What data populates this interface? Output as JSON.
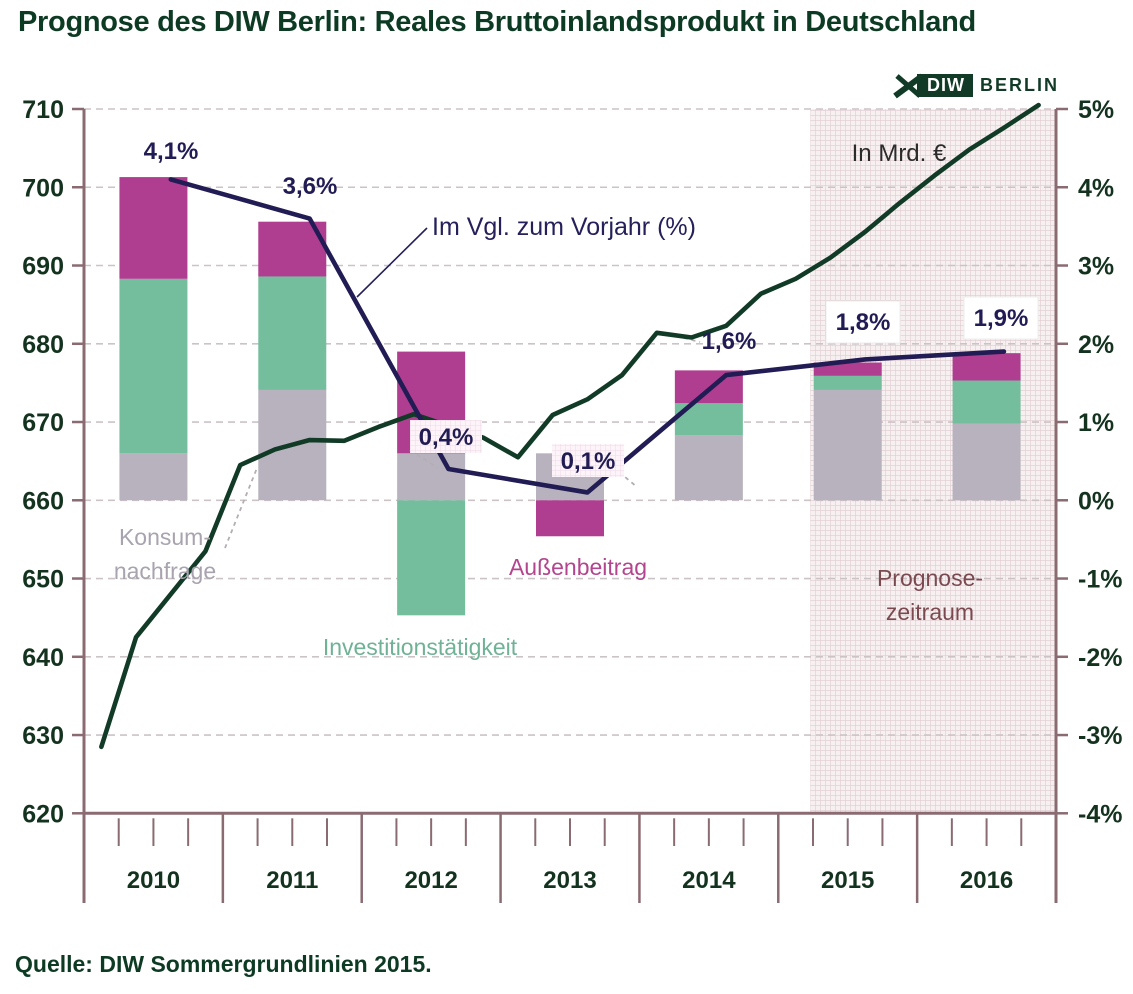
{
  "page": {
    "title": "Prognose des DIW Berlin: Reales Bruttoinlandsprodukt in Deutschland",
    "source": "Quelle: DIW Sommergrundlinien 2015."
  },
  "logo": {
    "diw": "DIW",
    "berlin": "BERLIN"
  },
  "annotations": {
    "in_mrd": "In Mrd. €",
    "im_vgl": "Im Vgl. zum Vorjahr (%)",
    "konsum": [
      "Konsum-",
      "nachfrage"
    ],
    "invest": "Investitionstätigkeit",
    "aussen": "Außenbeitrag",
    "prognose": [
      "Prognose-",
      "zeitraum"
    ]
  },
  "chart_data": {
    "type": "bar",
    "subtype": "stacked bars (growth contributions) + annual growth line + quarterly GDP level line",
    "title": "Prognose des DIW Berlin: Reales Bruttoinlandsprodukt in Deutschland",
    "categories": [
      2010,
      2011,
      2012,
      2013,
      2014,
      2015,
      2016
    ],
    "left_axis": {
      "unit": "Mrd. €",
      "min": 620,
      "max": 710,
      "step": 10
    },
    "right_axis": {
      "unit": "%",
      "min": -4,
      "max": 5,
      "step": 1,
      "tick_labels": [
        "5%",
        "4%",
        "3%",
        "2%",
        "1%",
        "0%",
        "-1%",
        "-2%",
        "-3%",
        "-4%"
      ]
    },
    "zero_baseline_mrd": 660,
    "grid": true,
    "bar_series": [
      {
        "name": "Konsumnachfrage",
        "color": "#b7b2bd",
        "values_pp": [
          0.6,
          1.41,
          0.6,
          0.6,
          0.83,
          1.41,
          0.98
        ]
      },
      {
        "name": "Investitionstätigkeit",
        "color": "#74bd9d",
        "values_pp": [
          2.23,
          1.45,
          -1.47,
          0,
          0.41,
          0.18,
          0.55
        ]
      },
      {
        "name": "Außenbeitrag",
        "color": "#b03e90",
        "values_pp": [
          1.3,
          0.7,
          1.3,
          -0.46,
          0.42,
          0.17,
          0.35
        ]
      }
    ],
    "yoy_line": {
      "name": "Im Vgl. zum Vorjahr (%)",
      "color": "#221c54",
      "values_pct": [
        4.1,
        3.6,
        0.4,
        0.1,
        1.6,
        1.8,
        1.9
      ],
      "point_labels": [
        "4,1%",
        "3,6%",
        "0,4%",
        "0,1%",
        "1,6%",
        "1,8%",
        "1,9%"
      ]
    },
    "gdp_line": {
      "name": "In Mrd. €",
      "color": "#123b27",
      "frequency": "quarterly",
      "start": "2010-Q1",
      "values": [
        628.5,
        642.5,
        648,
        653.5,
        664.5,
        666.5,
        667.7,
        667.6,
        669.4,
        671,
        669.5,
        668,
        665.5,
        670.9,
        672.9,
        676,
        681.4,
        680.8,
        682.3,
        686.4,
        688.3,
        691,
        694.3,
        698,
        701.5,
        704.8,
        707.6,
        710.5
      ]
    },
    "forecast_region": {
      "label": [
        "Prognose-",
        "zeitraum"
      ],
      "from_year": 2014.73,
      "to_year": 2016.5
    }
  }
}
